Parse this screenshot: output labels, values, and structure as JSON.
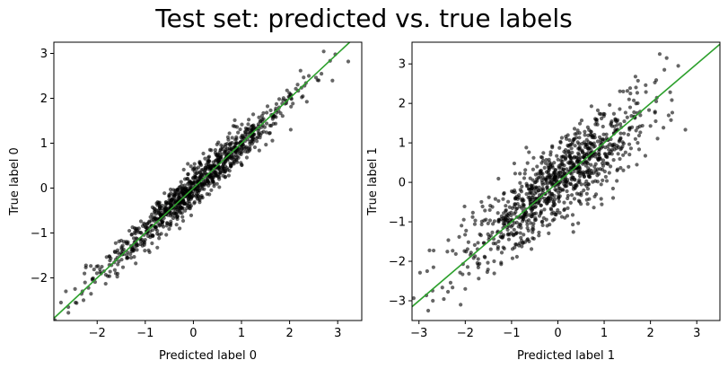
{
  "figure": {
    "title": "Test set: predicted vs. true labels"
  },
  "chart_data": [
    {
      "type": "scatter",
      "xlabel": "Predicted label 0",
      "ylabel": "True label 0",
      "xlim": [
        -2.9,
        3.5
      ],
      "ylim": [
        -2.95,
        3.25
      ],
      "xticks": [
        -2,
        -1,
        0,
        1,
        2,
        3
      ],
      "yticks": [
        -2,
        -1,
        0,
        1,
        2,
        3
      ],
      "grid": false,
      "point_color": "#000000",
      "point_count": 1000,
      "correlation": 0.975,
      "reference_line": {
        "color": "#2ca02c",
        "slope": 1,
        "intercept": 0
      },
      "highlighted_points": [
        {
          "x": 3.22,
          "y": 2.82
        },
        {
          "x": 2.95,
          "y": 2.98
        },
        {
          "x": 2.4,
          "y": 2.5
        },
        {
          "x": -2.65,
          "y": -2.3
        },
        {
          "x": -2.6,
          "y": -2.65
        },
        {
          "x": -2.45,
          "y": -2.55
        }
      ]
    },
    {
      "type": "scatter",
      "xlabel": "Predicted label 1",
      "ylabel": "True label 1",
      "xlim": [
        -3.15,
        3.5
      ],
      "ylim": [
        -3.5,
        3.55
      ],
      "xticks": [
        -3,
        -2,
        -1,
        0,
        1,
        2,
        3
      ],
      "yticks": [
        -3,
        -2,
        -1,
        0,
        1,
        2,
        3
      ],
      "grid": false,
      "point_color": "#000000",
      "point_count": 1000,
      "correlation": 0.86,
      "reference_line": {
        "color": "#2ca02c",
        "slope": 1,
        "intercept": 0
      },
      "highlighted_points": [
        {
          "x": 2.2,
          "y": 3.25
        },
        {
          "x": 2.35,
          "y": 3.15
        },
        {
          "x": 2.3,
          "y": 2.85
        },
        {
          "x": 2.6,
          "y": 2.95
        },
        {
          "x": -2.8,
          "y": -3.25
        },
        {
          "x": -2.7,
          "y": -3.0
        },
        {
          "x": -2.1,
          "y": -3.1
        },
        {
          "x": -2.0,
          "y": -2.7
        }
      ]
    }
  ]
}
